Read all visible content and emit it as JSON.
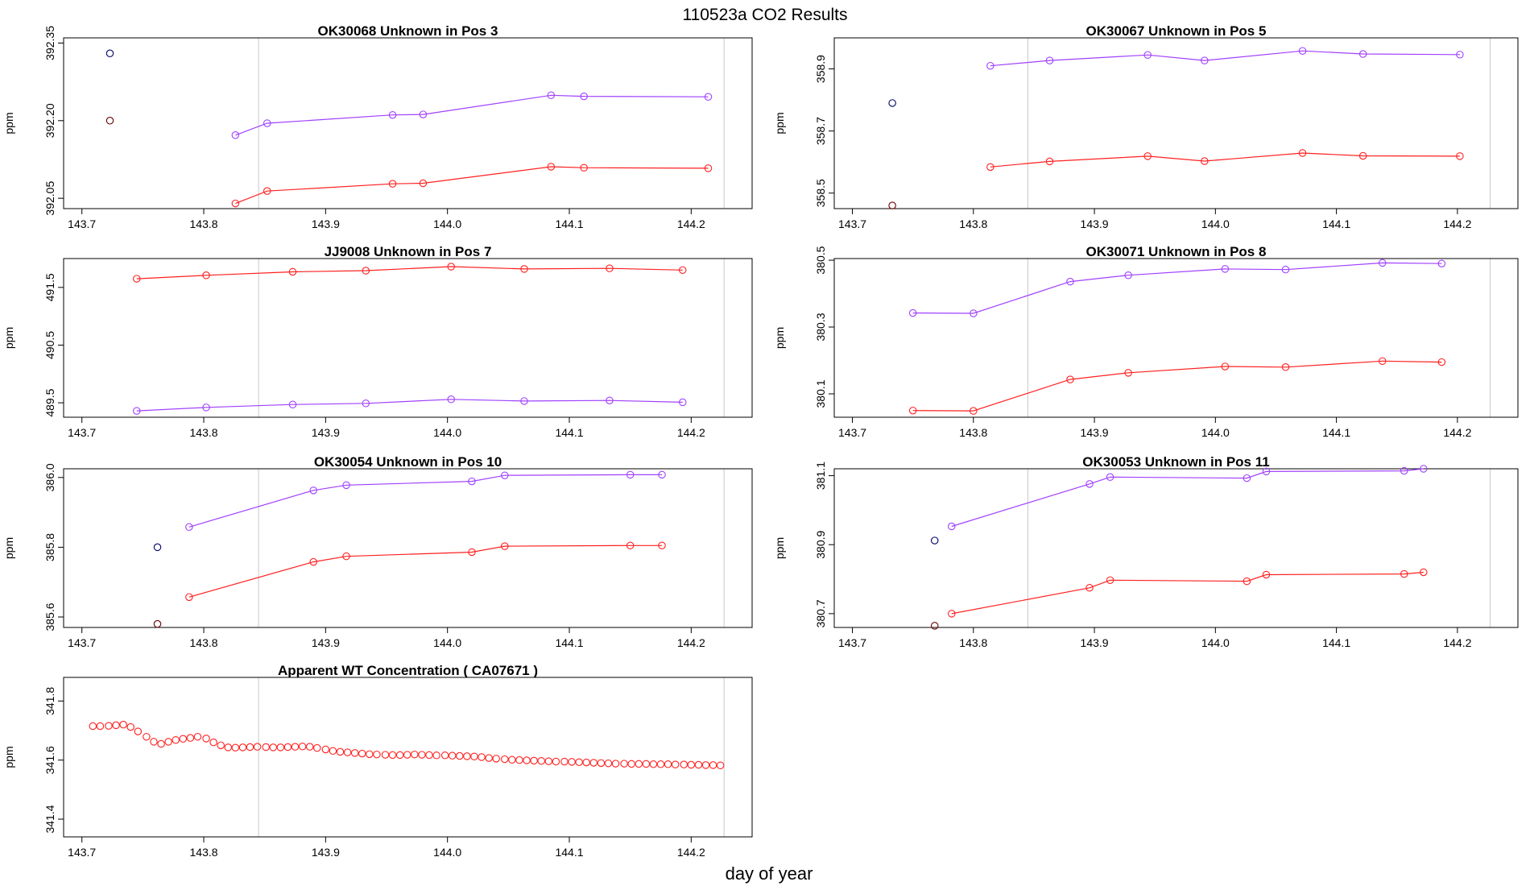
{
  "figure": {
    "title": "110523a  CO2 Results",
    "xlabel": "day of year"
  },
  "colors": {
    "series_purple": "#a040ff",
    "series_red": "#ff2020",
    "reference_point": "#000066",
    "reference_point_red": "#660000",
    "vline": "#c8c8c8",
    "axis": "#000000"
  },
  "chart_data": [
    {
      "type": "line",
      "title": "OK30068    Unknown in Pos 3",
      "ylabel": "ppm",
      "xlim": [
        143.685,
        144.25
      ],
      "ylim": [
        392.03,
        392.36
      ],
      "xticks": [
        "143.7",
        "143.8",
        "143.9",
        "144.0",
        "144.1",
        "144.2"
      ],
      "xtick_values": [
        143.7,
        143.8,
        143.9,
        144.0,
        144.1,
        144.2
      ],
      "yticks": [
        "392.05",
        "392.20",
        "392.35"
      ],
      "ytick_values": [
        392.05,
        392.2,
        392.35
      ],
      "vlines": [
        143.845,
        144.227
      ],
      "points": [
        {
          "x": 143.723,
          "y": 392.33,
          "color": "reference_point"
        },
        {
          "x": 143.723,
          "y": 392.2,
          "color": "reference_point_red"
        }
      ],
      "series": [
        {
          "color": "series_purple",
          "x": [
            143.826,
            143.852,
            143.955,
            143.98,
            144.085,
            144.112,
            144.214
          ],
          "y": [
            392.172,
            392.195,
            392.211,
            392.212,
            392.249,
            392.247,
            392.246
          ]
        },
        {
          "color": "series_red",
          "x": [
            143.826,
            143.852,
            143.955,
            143.98,
            144.085,
            144.112,
            144.214
          ],
          "y": [
            392.04,
            392.064,
            392.078,
            392.079,
            392.111,
            392.109,
            392.108
          ]
        }
      ]
    },
    {
      "type": "line",
      "title": "OK30067    Unknown in Pos 5",
      "ylabel": "ppm",
      "xlim": [
        143.685,
        144.25
      ],
      "ylim": [
        358.45,
        359.0
      ],
      "xticks": [
        "143.7",
        "143.8",
        "143.9",
        "144.0",
        "144.1",
        "144.2"
      ],
      "xtick_values": [
        143.7,
        143.8,
        143.9,
        144.0,
        144.1,
        144.2
      ],
      "yticks": [
        "358.5",
        "358.7",
        "358.9"
      ],
      "ytick_values": [
        358.5,
        358.7,
        358.9
      ],
      "vlines": [
        143.845,
        144.227
      ],
      "points": [
        {
          "x": 143.733,
          "y": 358.79,
          "color": "reference_point"
        },
        {
          "x": 143.733,
          "y": 358.46,
          "color": "reference_point_red"
        }
      ],
      "series": [
        {
          "color": "series_purple",
          "x": [
            143.814,
            143.863,
            143.944,
            143.991,
            144.072,
            144.122,
            144.202
          ],
          "y": [
            358.91,
            358.927,
            358.945,
            358.927,
            358.958,
            358.948,
            358.946
          ]
        },
        {
          "color": "series_red",
          "x": [
            143.814,
            143.863,
            143.944,
            143.991,
            144.072,
            144.122,
            144.202
          ],
          "y": [
            358.584,
            358.602,
            358.619,
            358.603,
            358.629,
            358.62,
            358.619
          ]
        }
      ]
    },
    {
      "type": "line",
      "title": "JJ9008    Unknown in Pos 7",
      "ylabel": "ppm",
      "xlim": [
        143.685,
        144.25
      ],
      "ylim": [
        489.25,
        492.0
      ],
      "xticks": [
        "143.7",
        "143.8",
        "143.9",
        "144.0",
        "144.1",
        "144.2"
      ],
      "xtick_values": [
        143.7,
        143.8,
        143.9,
        144.0,
        144.1,
        144.2
      ],
      "yticks": [
        "489.5",
        "490.5",
        "491.5"
      ],
      "ytick_values": [
        489.5,
        490.5,
        491.5
      ],
      "vlines": [
        143.845,
        144.227
      ],
      "points": [],
      "series": [
        {
          "color": "series_red",
          "x": [
            143.745,
            143.802,
            143.873,
            143.933,
            144.003,
            144.063,
            144.133,
            144.193
          ],
          "y": [
            491.65,
            491.71,
            491.77,
            491.79,
            491.86,
            491.82,
            491.83,
            491.8
          ]
        },
        {
          "color": "series_purple",
          "x": [
            143.745,
            143.802,
            143.873,
            143.933,
            144.003,
            144.063,
            144.133,
            144.193
          ],
          "y": [
            489.36,
            489.42,
            489.47,
            489.49,
            489.56,
            489.53,
            489.54,
            489.51
          ]
        }
      ]
    },
    {
      "type": "line",
      "title": "OK30071    Unknown in Pos 8",
      "ylabel": "ppm",
      "xlim": [
        143.685,
        144.25
      ],
      "ylim": [
        380.03,
        380.505
      ],
      "xticks": [
        "143.7",
        "143.8",
        "143.9",
        "144.0",
        "144.1",
        "144.2"
      ],
      "xtick_values": [
        143.7,
        143.8,
        143.9,
        144.0,
        144.1,
        144.2
      ],
      "yticks": [
        "380.1",
        "380.3",
        "380.5"
      ],
      "ytick_values": [
        380.1,
        380.3,
        380.5
      ],
      "vlines": [
        143.845,
        144.227
      ],
      "points": [],
      "series": [
        {
          "color": "series_purple",
          "x": [
            143.75,
            143.8,
            143.88,
            143.928,
            144.008,
            144.058,
            144.138,
            144.187
          ],
          "y": [
            380.342,
            380.341,
            380.436,
            380.455,
            380.474,
            380.472,
            380.492,
            380.49
          ]
        },
        {
          "color": "series_red",
          "x": [
            143.75,
            143.8,
            143.88,
            143.928,
            144.008,
            144.058,
            144.138,
            144.187
          ],
          "y": [
            380.05,
            380.049,
            380.143,
            380.163,
            380.182,
            380.18,
            380.198,
            380.195
          ]
        }
      ]
    },
    {
      "type": "line",
      "title": "OK30054    Unknown in Pos 10",
      "ylabel": "ppm",
      "xlim": [
        143.685,
        144.25
      ],
      "ylim": [
        385.57,
        386.025
      ],
      "xticks": [
        "143.7",
        "143.8",
        "143.9",
        "144.0",
        "144.1",
        "144.2"
      ],
      "xtick_values": [
        143.7,
        143.8,
        143.9,
        144.0,
        144.1,
        144.2
      ],
      "yticks": [
        "385.6",
        "385.8",
        "386.0"
      ],
      "ytick_values": [
        385.6,
        385.8,
        386.0
      ],
      "vlines": [
        143.845,
        144.227
      ],
      "points": [
        {
          "x": 143.762,
          "y": 385.8,
          "color": "reference_point"
        },
        {
          "x": 143.762,
          "y": 385.58,
          "color": "reference_point_red"
        }
      ],
      "series": [
        {
          "color": "series_purple",
          "x": [
            143.788,
            143.89,
            143.917,
            144.02,
            144.047,
            144.15,
            144.176
          ],
          "y": [
            385.858,
            385.963,
            385.978,
            385.989,
            386.006,
            386.008,
            386.008
          ]
        },
        {
          "color": "series_red",
          "x": [
            143.788,
            143.89,
            143.917,
            144.02,
            144.047,
            144.15,
            144.176
          ],
          "y": [
            385.657,
            385.758,
            385.774,
            385.786,
            385.803,
            385.805,
            385.805
          ]
        }
      ]
    },
    {
      "type": "line",
      "title": "OK30053    Unknown in Pos 11",
      "ylabel": "ppm",
      "xlim": [
        143.685,
        144.25
      ],
      "ylim": [
        380.66,
        381.12
      ],
      "xticks": [
        "143.7",
        "143.8",
        "143.9",
        "144.0",
        "144.1",
        "144.2"
      ],
      "xtick_values": [
        143.7,
        143.8,
        143.9,
        144.0,
        144.1,
        144.2
      ],
      "yticks": [
        "380.7",
        "380.9",
        "381.1"
      ],
      "ytick_values": [
        380.7,
        380.9,
        381.1
      ],
      "vlines": [
        143.845,
        144.227
      ],
      "points": [
        {
          "x": 143.768,
          "y": 380.912,
          "color": "reference_point"
        },
        {
          "x": 143.768,
          "y": 380.665,
          "color": "reference_point_red"
        }
      ],
      "series": [
        {
          "color": "series_purple",
          "x": [
            143.782,
            143.896,
            143.913,
            144.026,
            144.042,
            144.156,
            144.172
          ],
          "y": [
            380.953,
            381.076,
            381.096,
            381.093,
            381.112,
            381.114,
            381.12
          ]
        },
        {
          "color": "series_red",
          "x": [
            143.782,
            143.896,
            143.913,
            144.026,
            144.042,
            144.156,
            144.172
          ],
          "y": [
            380.7,
            380.775,
            380.797,
            380.794,
            380.813,
            380.815,
            380.82
          ]
        }
      ]
    },
    {
      "type": "scatter",
      "title": "Apparent WT Concentration ( CA07671 )",
      "ylabel": "ppm",
      "xlim": [
        143.685,
        144.25
      ],
      "ylim": [
        341.34,
        341.88
      ],
      "xticks": [
        "143.7",
        "143.8",
        "143.9",
        "144.0",
        "144.1",
        "144.2"
      ],
      "xtick_values": [
        143.7,
        143.8,
        143.9,
        144.0,
        144.1,
        144.2
      ],
      "yticks": [
        "341.4",
        "341.6",
        "341.8"
      ],
      "ytick_values": [
        341.4,
        341.6,
        341.8
      ],
      "vlines": [
        143.845,
        144.227
      ],
      "points": [],
      "series": [
        {
          "color": "series_red",
          "x": [
            143.709,
            143.715,
            143.722,
            143.728,
            143.734,
            143.74,
            143.746,
            143.753,
            143.759,
            143.765,
            143.771,
            143.777,
            143.783,
            143.789,
            143.795,
            143.802,
            143.808,
            143.814,
            143.82,
            143.826,
            143.832,
            143.838,
            143.844,
            143.851,
            143.857,
            143.863,
            143.869,
            143.875,
            143.881,
            143.887,
            143.893,
            143.9,
            143.906,
            143.912,
            143.918,
            143.924,
            143.93,
            143.936,
            143.942,
            143.949,
            143.955,
            143.961,
            143.967,
            143.973,
            143.979,
            143.985,
            143.991,
            143.998,
            144.004,
            144.01,
            144.016,
            144.022,
            144.028,
            144.034,
            144.04,
            144.047,
            144.053,
            144.059,
            144.065,
            144.071,
            144.077,
            144.083,
            144.089,
            144.096,
            144.102,
            144.108,
            144.114,
            144.12,
            144.126,
            144.132,
            144.138,
            144.145,
            144.151,
            144.157,
            144.163,
            144.169,
            144.175,
            144.181,
            144.187,
            144.194,
            144.2,
            144.206,
            144.212,
            144.218,
            144.224
          ],
          "y": [
            341.715,
            341.715,
            341.716,
            341.718,
            341.72,
            341.712,
            341.697,
            341.679,
            341.662,
            341.655,
            341.662,
            341.668,
            341.672,
            341.675,
            341.679,
            341.673,
            341.66,
            341.65,
            341.643,
            341.642,
            341.643,
            341.644,
            341.645,
            341.644,
            341.643,
            341.643,
            341.644,
            341.645,
            341.646,
            341.645,
            341.641,
            341.636,
            341.631,
            341.628,
            341.626,
            341.624,
            341.622,
            341.62,
            341.619,
            341.618,
            341.617,
            341.617,
            341.618,
            341.619,
            341.618,
            341.617,
            341.616,
            341.616,
            341.615,
            341.614,
            341.613,
            341.612,
            341.61,
            341.607,
            341.605,
            341.603,
            341.601,
            341.6,
            341.599,
            341.598,
            341.597,
            341.596,
            341.595,
            341.595,
            341.594,
            341.593,
            341.592,
            341.591,
            341.59,
            341.589,
            341.588,
            341.588,
            341.587,
            341.587,
            341.587,
            341.586,
            341.586,
            341.586,
            341.585,
            341.585,
            341.584,
            341.584,
            341.583,
            341.583,
            341.582
          ]
        }
      ]
    }
  ]
}
